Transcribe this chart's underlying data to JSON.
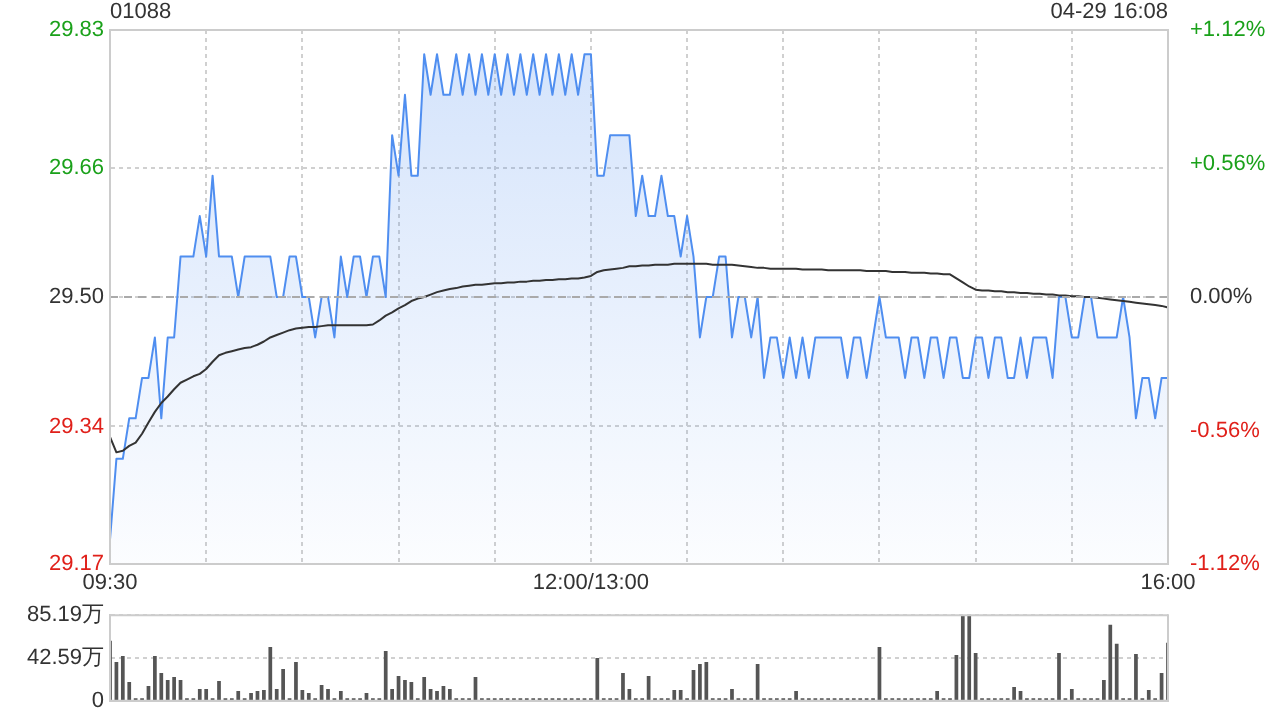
{
  "chart_data": [
    {
      "type": "area",
      "title": "01088",
      "annotations": [
        "04-29 16:08"
      ],
      "categories": [
        "09:30",
        null,
        null,
        null,
        null,
        null,
        null,
        null,
        null,
        null,
        null,
        null,
        null,
        null,
        null,
        null,
        null,
        null,
        null,
        null,
        null,
        null,
        null,
        null,
        null,
        null,
        null,
        null,
        null,
        null,
        null,
        null,
        null,
        null,
        null,
        null,
        null,
        null,
        null,
        null,
        null,
        null,
        null,
        null,
        null,
        null,
        null,
        null,
        null,
        null,
        null,
        null,
        null,
        null,
        null,
        null,
        null,
        null,
        null,
        null,
        null,
        null,
        null,
        null,
        null,
        null,
        null,
        null,
        null,
        null,
        null,
        null,
        null,
        null,
        null,
        "12:00/13:00",
        null,
        null,
        null,
        null,
        null,
        null,
        null,
        null,
        null,
        null,
        null,
        null,
        null,
        null,
        null,
        null,
        null,
        null,
        null,
        null,
        null,
        null,
        null,
        null,
        null,
        null,
        null,
        null,
        null,
        null,
        null,
        null,
        null,
        null,
        null,
        null,
        null,
        null,
        null,
        null,
        null,
        null,
        null,
        null,
        null,
        null,
        null,
        null,
        null,
        null,
        null,
        null,
        null,
        null,
        null,
        null,
        null,
        null,
        null,
        null,
        null,
        null,
        null,
        null,
        null,
        null,
        null,
        null,
        null,
        null,
        null,
        null,
        null,
        null,
        null,
        null,
        null,
        null,
        null,
        null,
        null,
        null,
        null,
        null,
        null,
        null,
        null,
        null,
        null,
        "16:00"
      ],
      "ylim": [
        29.17,
        29.83
      ],
      "yticks": [
        29.17,
        29.34,
        {
          "value": 29.5,
          "label": "29.50"
        },
        29.66,
        29.83
      ],
      "y2lim": [
        -1.12,
        1.12
      ],
      "y2ticks": [
        {
          "value": -1.12,
          "label": "-1.12%"
        },
        {
          "value": -0.56,
          "label": "-0.56%"
        },
        {
          "value": 0,
          "label": "0.00%"
        },
        {
          "value": 0.56,
          "label": "+0.56%"
        },
        {
          "value": 1.12,
          "label": "+1.12%"
        }
      ],
      "grid": true,
      "legend": false,
      "marker": "none",
      "ref_lines": [
        {
          "axis": "y",
          "value": 29.5,
          "color": "#aaaaaa",
          "line_style": "dashed"
        }
      ],
      "series": [
        {
          "type": "area",
          "color": "#4f8ef0",
          "values": [
            29.2,
            29.3,
            29.3,
            29.35,
            29.35,
            29.4,
            29.4,
            29.45,
            29.35,
            29.45,
            29.45,
            29.55,
            29.55,
            29.55,
            29.6,
            29.55,
            29.65,
            29.55,
            29.55,
            29.55,
            29.5,
            29.55,
            29.55,
            29.55,
            29.55,
            29.55,
            29.5,
            29.5,
            29.55,
            29.55,
            29.5,
            29.5,
            29.45,
            29.5,
            29.5,
            29.45,
            29.55,
            29.5,
            29.55,
            29.55,
            29.5,
            29.55,
            29.55,
            29.5,
            29.7,
            29.65,
            29.75,
            29.65,
            29.65,
            29.8,
            29.75,
            29.8,
            29.75,
            29.75,
            29.8,
            29.75,
            29.8,
            29.75,
            29.8,
            29.75,
            29.8,
            29.75,
            29.8,
            29.75,
            29.8,
            29.75,
            29.8,
            29.75,
            29.8,
            29.75,
            29.8,
            29.75,
            29.8,
            29.75,
            29.8,
            29.8,
            29.65,
            29.65,
            29.7,
            29.7,
            29.7,
            29.7,
            29.6,
            29.65,
            29.6,
            29.6,
            29.65,
            29.6,
            29.6,
            29.55,
            29.6,
            29.55,
            29.45,
            29.5,
            29.5,
            29.55,
            29.55,
            29.45,
            29.5,
            29.5,
            29.45,
            29.5,
            29.4,
            29.45,
            29.45,
            29.4,
            29.45,
            29.4,
            29.45,
            29.4,
            29.45,
            29.45,
            29.45,
            29.45,
            29.45,
            29.4,
            29.45,
            29.45,
            29.4,
            29.45,
            29.5,
            29.45,
            29.45,
            29.45,
            29.4,
            29.45,
            29.45,
            29.4,
            29.45,
            29.45,
            29.4,
            29.45,
            29.45,
            29.4,
            29.4,
            29.45,
            29.45,
            29.4,
            29.45,
            29.45,
            29.4,
            29.4,
            29.45,
            29.4,
            29.45,
            29.45,
            29.45,
            29.4,
            29.5,
            29.5,
            29.45,
            29.45,
            29.5,
            29.5,
            29.45,
            29.45,
            29.45,
            29.45,
            29.5,
            29.45,
            29.35,
            29.4,
            29.4,
            29.35,
            29.4,
            29.4
          ]
        },
        {
          "type": "line",
          "color": "#333333",
          "values": [
            29.327,
            29.308,
            29.31,
            29.316,
            29.32,
            29.331,
            29.345,
            29.358,
            29.369,
            29.377,
            29.386,
            29.394,
            29.398,
            29.402,
            29.405,
            29.411,
            29.42,
            29.428,
            29.431,
            29.433,
            29.435,
            29.437,
            29.438,
            29.441,
            29.445,
            29.45,
            29.453,
            29.456,
            29.459,
            29.461,
            29.462,
            29.463,
            29.463,
            29.464,
            29.465,
            29.465,
            29.465,
            29.465,
            29.465,
            29.465,
            29.465,
            29.466,
            29.471,
            29.477,
            29.481,
            29.486,
            29.49,
            29.495,
            29.498,
            29.5,
            29.503,
            29.506,
            29.508,
            29.51,
            29.511,
            29.513,
            29.514,
            29.515,
            29.515,
            29.516,
            29.517,
            29.517,
            29.518,
            29.518,
            29.519,
            29.519,
            29.52,
            29.52,
            29.521,
            29.521,
            29.522,
            29.522,
            29.523,
            29.523,
            29.524,
            29.526,
            29.531,
            29.533,
            29.534,
            29.535,
            29.536,
            29.538,
            29.538,
            29.539,
            29.539,
            29.54,
            29.54,
            29.54,
            29.541,
            29.541,
            29.541,
            29.541,
            29.541,
            29.541,
            29.54,
            29.54,
            29.54,
            29.54,
            29.539,
            29.538,
            29.537,
            29.536,
            29.536,
            29.535,
            29.535,
            29.535,
            29.535,
            29.535,
            29.534,
            29.534,
            29.534,
            29.534,
            29.533,
            29.533,
            29.533,
            29.533,
            29.533,
            29.533,
            29.532,
            29.532,
            29.532,
            29.532,
            29.531,
            29.531,
            29.531,
            29.53,
            29.53,
            29.53,
            29.529,
            29.529,
            29.528,
            29.528,
            29.523,
            29.518,
            29.513,
            29.509,
            29.508,
            29.508,
            29.507,
            29.507,
            29.506,
            29.506,
            29.505,
            29.505,
            29.504,
            29.504,
            29.503,
            29.503,
            29.502,
            29.502,
            29.501,
            29.501,
            29.5,
            29.5,
            29.499,
            29.498,
            29.497,
            29.496,
            29.495,
            29.494,
            29.493,
            29.492,
            29.491,
            29.49,
            29.489,
            29.487
          ]
        }
      ]
    },
    {
      "type": "bar",
      "ylim": [
        0,
        85.19
      ],
      "yticks": [
        0,
        {
          "value": 42.59,
          "label": "42.59万"
        },
        {
          "value": 85.19,
          "label": "85.19万"
        }
      ],
      "grid": "y",
      "legend": false,
      "tick_labels": "y",
      "color": "#555555",
      "categories": [
        null,
        null,
        null,
        null,
        null,
        null,
        null,
        null,
        null,
        null,
        null,
        null,
        null,
        null,
        null,
        null,
        null,
        null,
        null,
        null,
        null,
        null,
        null,
        null,
        null,
        null,
        null,
        null,
        null,
        null,
        null,
        null,
        null,
        null,
        null,
        null,
        null,
        null,
        null,
        null,
        null,
        null,
        null,
        null,
        null,
        null,
        null,
        null,
        null,
        null,
        null,
        null,
        null,
        null,
        null,
        null,
        null,
        null,
        null,
        null,
        null,
        null,
        null,
        null,
        null,
        null,
        null,
        null,
        null,
        null,
        null,
        null,
        null,
        null,
        null,
        null,
        null,
        null,
        null,
        null,
        null,
        null,
        null,
        null,
        null,
        null,
        null,
        null,
        null,
        null,
        null,
        null,
        null,
        null,
        null,
        null,
        null,
        null,
        null,
        null,
        null,
        null,
        null,
        null,
        null,
        null,
        null,
        null,
        null,
        null,
        null,
        null,
        null,
        null,
        null,
        null,
        null,
        null,
        null,
        null,
        null,
        null,
        null,
        null,
        null,
        null,
        null,
        null,
        null,
        null,
        null,
        null,
        null,
        null,
        null,
        null,
        null,
        null,
        null,
        null,
        null,
        null,
        null,
        null,
        null,
        null,
        null,
        null,
        null,
        null,
        null,
        null,
        null,
        null,
        null,
        null,
        null,
        null,
        null,
        null,
        null,
        null,
        null,
        null,
        null,
        null
      ],
      "values": [
        59,
        38,
        44,
        18,
        2,
        2,
        14,
        44,
        27,
        20,
        23,
        20,
        2,
        2,
        11,
        11,
        2,
        19,
        2,
        2,
        9,
        2,
        7,
        9,
        10,
        53,
        11,
        31,
        2,
        38,
        10,
        7,
        2,
        15,
        11,
        2,
        9,
        2,
        2,
        2,
        7,
        2,
        2,
        49,
        11,
        24,
        20,
        18,
        2,
        23,
        11,
        9,
        14,
        11,
        2,
        2,
        2,
        23,
        2,
        2,
        2,
        2,
        2,
        2,
        2,
        2,
        2,
        2,
        2,
        2,
        2,
        2,
        2,
        2,
        2,
        2,
        42,
        2,
        2,
        2,
        27,
        11,
        2,
        2,
        24,
        2,
        2,
        2,
        10,
        10,
        2,
        30,
        36,
        38,
        2,
        2,
        2,
        11,
        2,
        2,
        2,
        36,
        2,
        2,
        2,
        2,
        2,
        9,
        2,
        2,
        2,
        2,
        2,
        2,
        2,
        2,
        2,
        2,
        2,
        2,
        53,
        2,
        2,
        2,
        2,
        2,
        2,
        2,
        2,
        9,
        2,
        2,
        45,
        84,
        85,
        47,
        2,
        2,
        2,
        2,
        2,
        13,
        9,
        2,
        2,
        2,
        2,
        2,
        47,
        2,
        11,
        2,
        2,
        2,
        2,
        20,
        75,
        56,
        2,
        2,
        46,
        2,
        10,
        2,
        27,
        57
      ]
    }
  ]
}
